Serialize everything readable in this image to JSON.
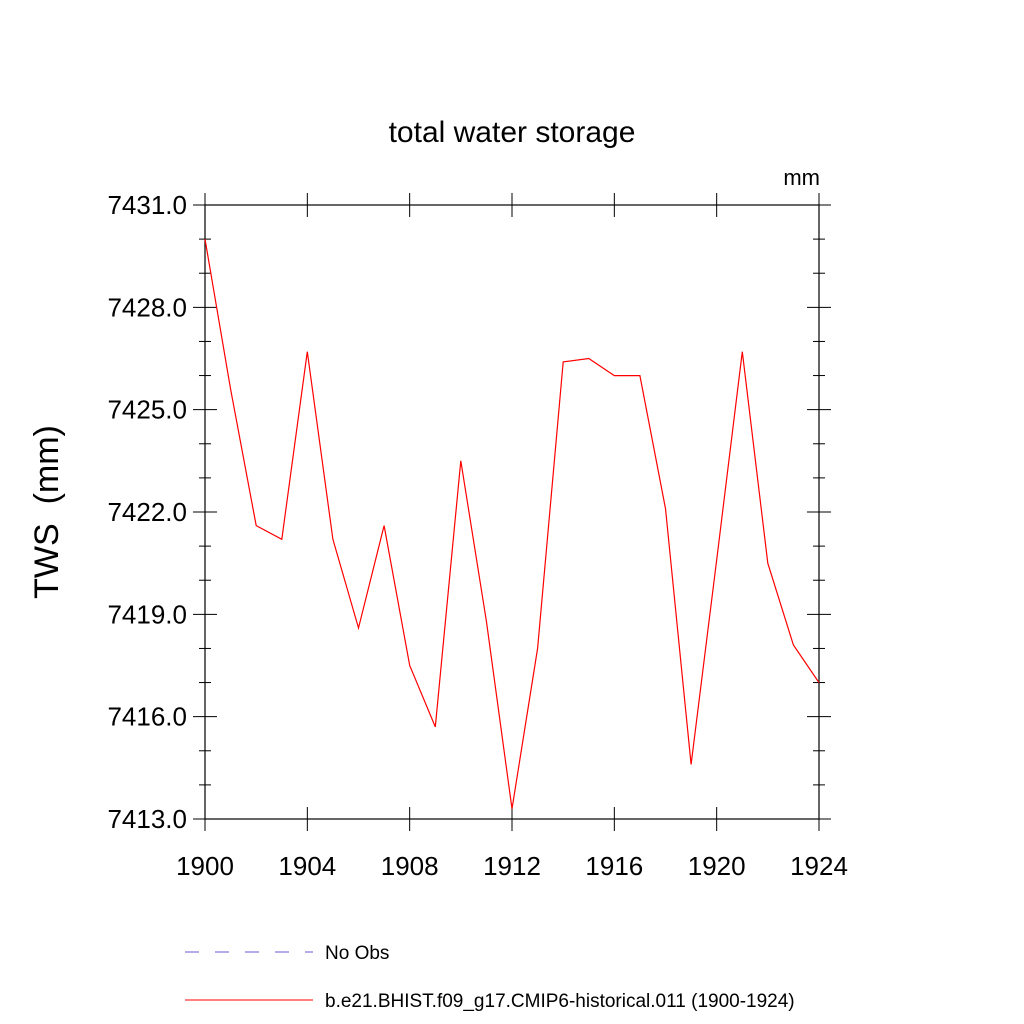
{
  "chart_data": {
    "type": "line",
    "title": "total water storage",
    "units_label": "mm",
    "ylabel": "TWS  (mm)",
    "xlabel": "",
    "xlim": [
      1900,
      1924
    ],
    "ylim": [
      7413.0,
      7431.0
    ],
    "x_ticks": [
      1900,
      1904,
      1908,
      1912,
      1916,
      1920,
      1924
    ],
    "x_tick_labels": [
      "1900",
      "1904",
      "1908",
      "1912",
      "1916",
      "1920",
      "1924"
    ],
    "y_ticks": [
      7413.0,
      7416.0,
      7419.0,
      7422.0,
      7425.0,
      7428.0,
      7431.0
    ],
    "y_tick_labels": [
      "7413.0",
      "7416.0",
      "7419.0",
      "7422.0",
      "7425.0",
      "7428.0",
      "7431.0"
    ],
    "grid": false,
    "legend_position": "bottom",
    "series": [
      {
        "name": "b.e21.BHIST.f09_g17.CMIP6-historical.011 (1900-1924)",
        "color": "#ff0000",
        "style": "solid",
        "x": [
          1900,
          1901,
          1902,
          1903,
          1904,
          1905,
          1906,
          1907,
          1908,
          1909,
          1910,
          1911,
          1912,
          1913,
          1914,
          1915,
          1916,
          1917,
          1918,
          1919,
          1920,
          1921,
          1922,
          1923,
          1924
        ],
        "y": [
          7430.0,
          7425.6,
          7421.6,
          7421.2,
          7426.7,
          7421.2,
          7418.6,
          7421.6,
          7417.5,
          7415.7,
          7423.5,
          7418.8,
          7413.3,
          7418.0,
          7426.4,
          7426.5,
          7426.0,
          7426.0,
          7422.1,
          7414.6,
          7420.6,
          7426.7,
          7420.5,
          7418.1,
          7417.0
        ]
      }
    ],
    "legend": [
      {
        "label": "No Obs",
        "color": "#6a5acd",
        "style": "dashed"
      },
      {
        "label": "b.e21.BHIST.f09_g17.CMIP6-historical.011 (1900-1924)",
        "color": "#ff0000",
        "style": "solid"
      }
    ]
  }
}
